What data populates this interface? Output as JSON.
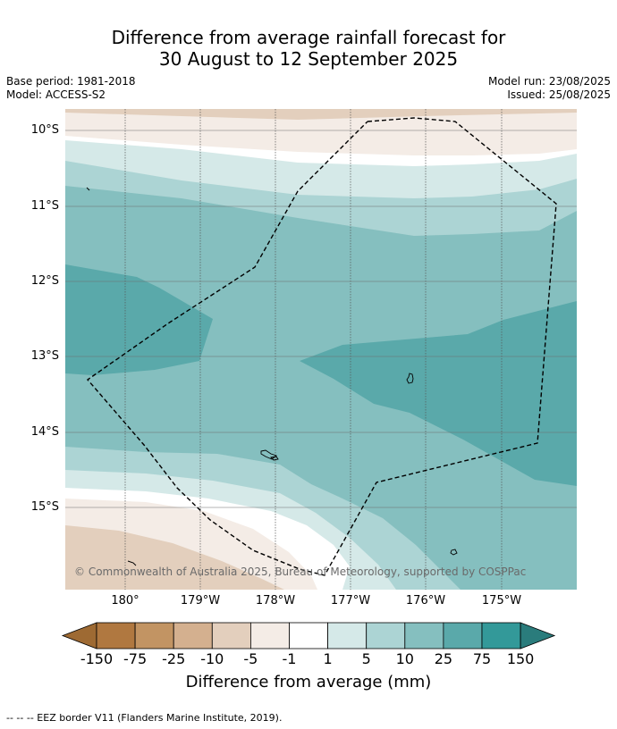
{
  "title": {
    "line1": "Difference from average rainfall forecast for",
    "line2": "30 August to 12 September 2025"
  },
  "meta": {
    "base_period": "Base period: 1981-2018",
    "model": "Model: ACCESS-S2",
    "model_run": "Model run: 23/08/2025",
    "issued": "Issued: 25/08/2025"
  },
  "map": {
    "lat_labels": [
      "10°S",
      "11°S",
      "12°S",
      "13°S",
      "14°S",
      "15°S"
    ],
    "lon_labels": [
      "180°",
      "179°W",
      "178°W",
      "177°W",
      "176°W",
      "175°W"
    ],
    "copyright": "© Commonwealth of Australia 2025, Bureau of Meteorology, supported by COSPPac",
    "eez_border": "dashed"
  },
  "colorbar": {
    "ticks": [
      "-150",
      "-75",
      "-25",
      "-10",
      "-5",
      "-1",
      "1",
      "5",
      "10",
      "25",
      "75",
      "150"
    ],
    "colors": [
      "#9e6a33",
      "#b07840",
      "#c29463",
      "#d4b08f",
      "#e3cfbd",
      "#f4ece6",
      "#ffffff",
      "#d5e9e8",
      "#acd4d4",
      "#85bfbf",
      "#5aa9aa",
      "#339999",
      "#2a7c7c"
    ],
    "label": "Difference from average (mm)"
  },
  "footer": "-- -- -- EEZ border V11 (Flanders Marine Institute, 2019)."
}
